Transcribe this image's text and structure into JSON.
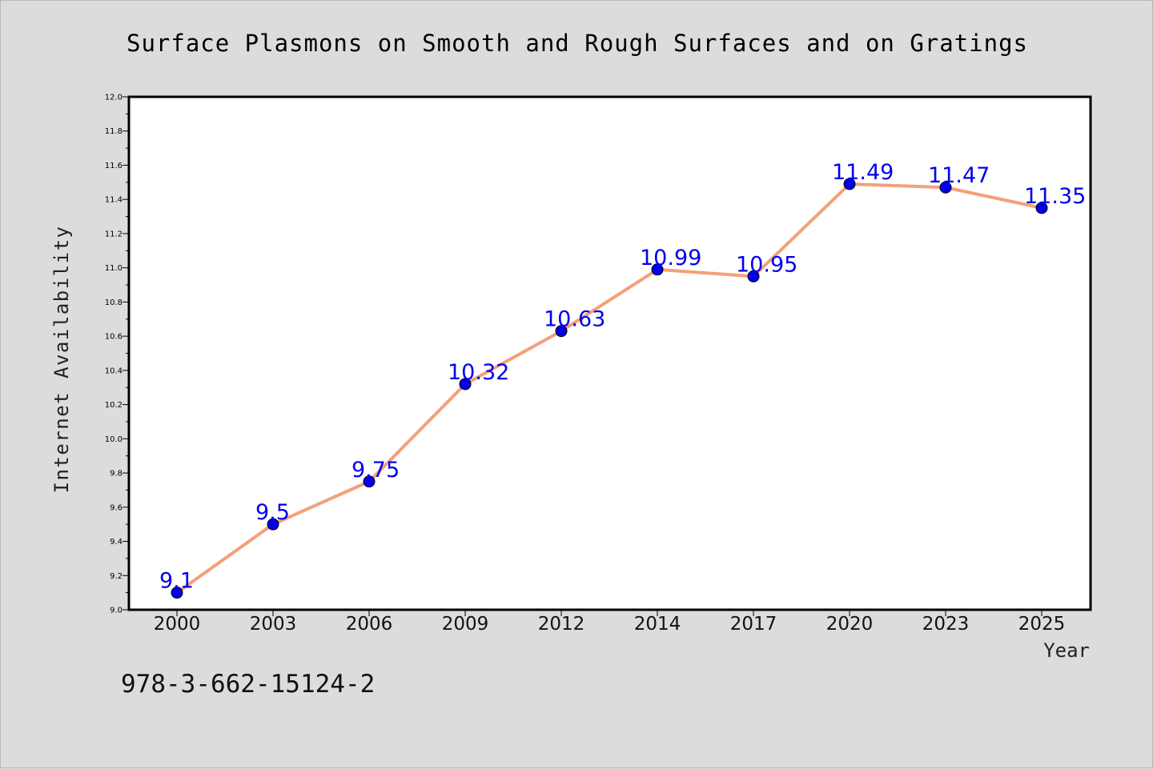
{
  "chart_data": {
    "type": "line",
    "title": "Surface Plasmons on Smooth and Rough Surfaces and on Gratings",
    "xlabel": "Year",
    "ylabel": "Internet Availability",
    "categories": [
      "2000",
      "2003",
      "2006",
      "2009",
      "2012",
      "2014",
      "2017",
      "2020",
      "2023",
      "2025"
    ],
    "series": [
      {
        "values": [
          9.1,
          9.5,
          9.75,
          10.32,
          10.63,
          10.99,
          10.95,
          11.49,
          11.47,
          11.35
        ],
        "labels": [
          "9.1",
          "9.5",
          "9.75",
          "10.32",
          "10.63",
          "10.99",
          "10.95",
          "11.49",
          "11.47",
          "11.35"
        ]
      }
    ],
    "ylim": [
      9.0,
      12.0
    ],
    "yticks": [
      "9.0",
      "9.2",
      "9.4",
      "9.6",
      "9.8",
      "10.0",
      "10.2",
      "10.4",
      "10.6",
      "10.8",
      "11.0",
      "11.2",
      "11.4",
      "11.6",
      "11.8",
      "12.0"
    ],
    "grid": false,
    "legend": "none",
    "colors": {
      "line": "#f4a07a",
      "marker": "#0000ee",
      "data_label": "#0000ee",
      "background": "#dcdcdc",
      "plot_area": "#ffffff"
    }
  },
  "footer": {
    "isbn": "978-3-662-15124-2"
  }
}
